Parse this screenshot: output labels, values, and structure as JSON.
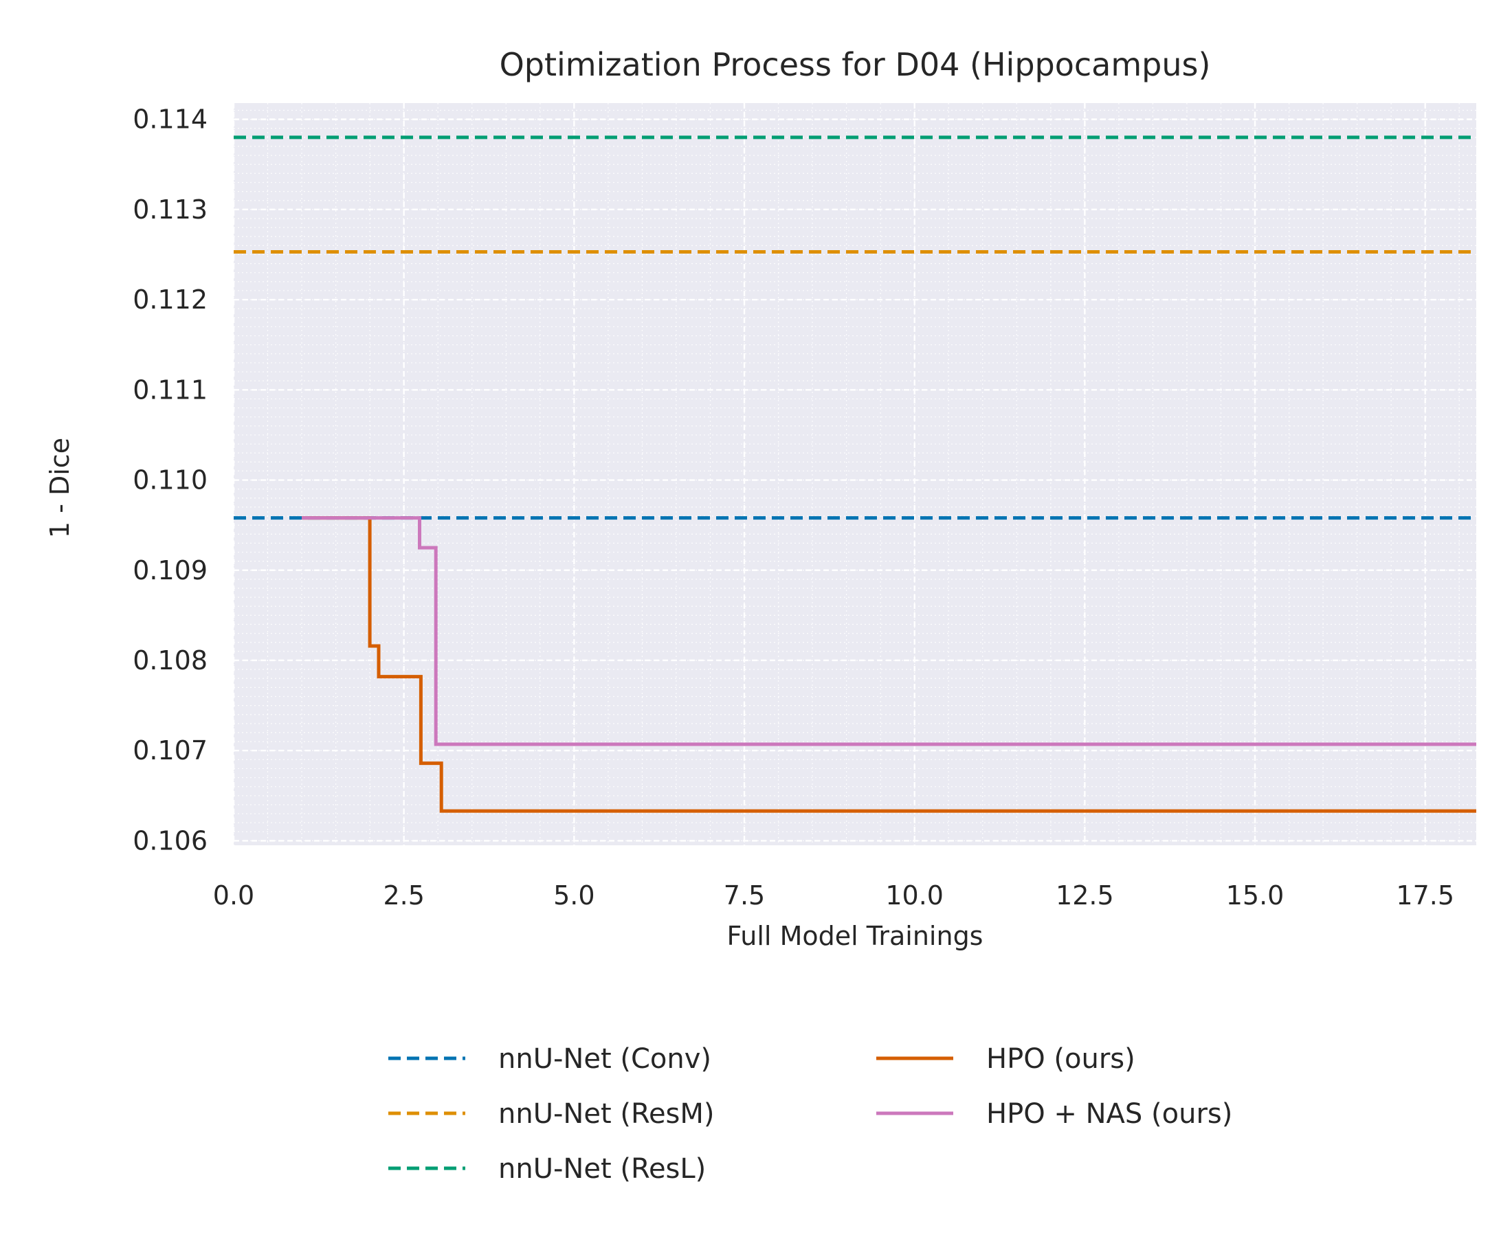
{
  "chart_data": {
    "type": "line",
    "title": "Optimization Process for D04 (Hippocampus)",
    "xlabel": "Full Model Trainings",
    "ylabel": "1 - Dice",
    "xlim": [
      0.0,
      18.25
    ],
    "ylim": [
      0.10595,
      0.11418
    ],
    "x_ticks": [
      "0.0",
      "2.5",
      "5.0",
      "7.5",
      "10.0",
      "12.5",
      "15.0",
      "17.5"
    ],
    "y_ticks": [
      "0.106",
      "0.107",
      "0.108",
      "0.109",
      "0.110",
      "0.111",
      "0.112",
      "0.113",
      "0.114"
    ],
    "grid": true,
    "minor_grid": true,
    "legend_position": "below",
    "series": [
      {
        "name": "nnU-Net (Conv)",
        "style": "dashed",
        "color": "#0173b2",
        "kind": "hline",
        "value": 0.10958
      },
      {
        "name": "nnU-Net (ResM)",
        "style": "dashed",
        "color": "#de8f05",
        "kind": "hline",
        "value": 0.11253
      },
      {
        "name": "nnU-Net (ResL)",
        "style": "dashed",
        "color": "#029e73",
        "kind": "hline",
        "value": 0.1138
      },
      {
        "name": "HPO (ours)",
        "style": "solid",
        "color": "#d55e00",
        "kind": "step",
        "points": [
          [
            1.0,
            0.10958
          ],
          [
            2.0,
            0.10958
          ],
          [
            2.0,
            0.10816
          ],
          [
            2.13,
            0.10816
          ],
          [
            2.13,
            0.10782
          ],
          [
            2.75,
            0.10782
          ],
          [
            2.75,
            0.10686
          ],
          [
            3.05,
            0.10686
          ],
          [
            3.05,
            0.10633
          ],
          [
            18.25,
            0.10633
          ]
        ]
      },
      {
        "name": "HPO + NAS (ours)",
        "style": "solid",
        "color": "#cc78bc",
        "kind": "step",
        "points": [
          [
            1.0,
            0.10958
          ],
          [
            2.73,
            0.10958
          ],
          [
            2.73,
            0.10925
          ],
          [
            2.97,
            0.10925
          ],
          [
            2.97,
            0.10707
          ],
          [
            18.25,
            0.10707
          ]
        ]
      }
    ]
  }
}
